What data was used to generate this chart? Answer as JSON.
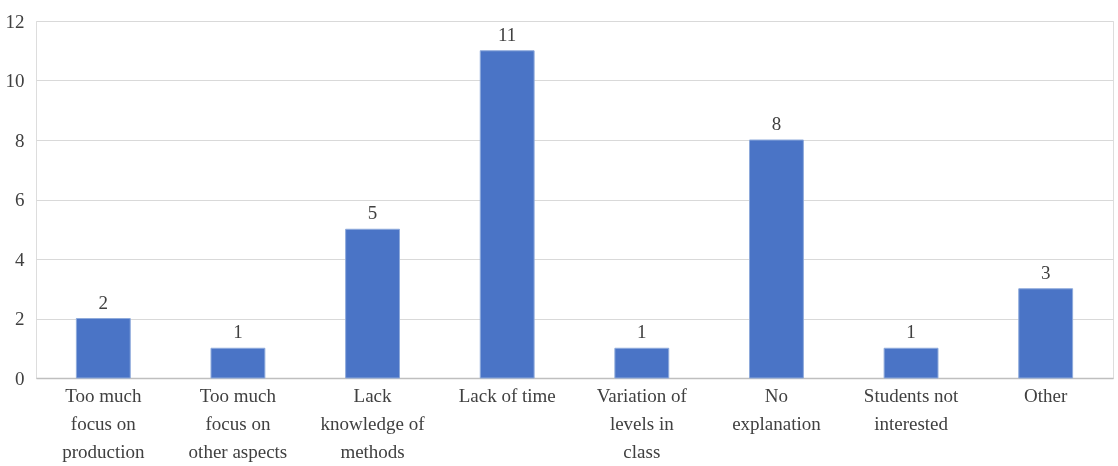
{
  "chart_data": {
    "type": "bar",
    "categories": [
      "Too much focus on production",
      "Too much focus on other aspects",
      "Lack knowledge of methods",
      "Lack of time",
      "Variation of levels in class",
      "No explanation",
      "Students not interested",
      "Other"
    ],
    "values": [
      2,
      1,
      5,
      11,
      1,
      8,
      1,
      3
    ],
    "color": "#4a74c6",
    "ylim": [
      0,
      12
    ],
    "yticks": [
      0,
      2,
      4,
      6,
      8,
      10,
      12
    ],
    "grid": "y",
    "data_labels": true
  }
}
